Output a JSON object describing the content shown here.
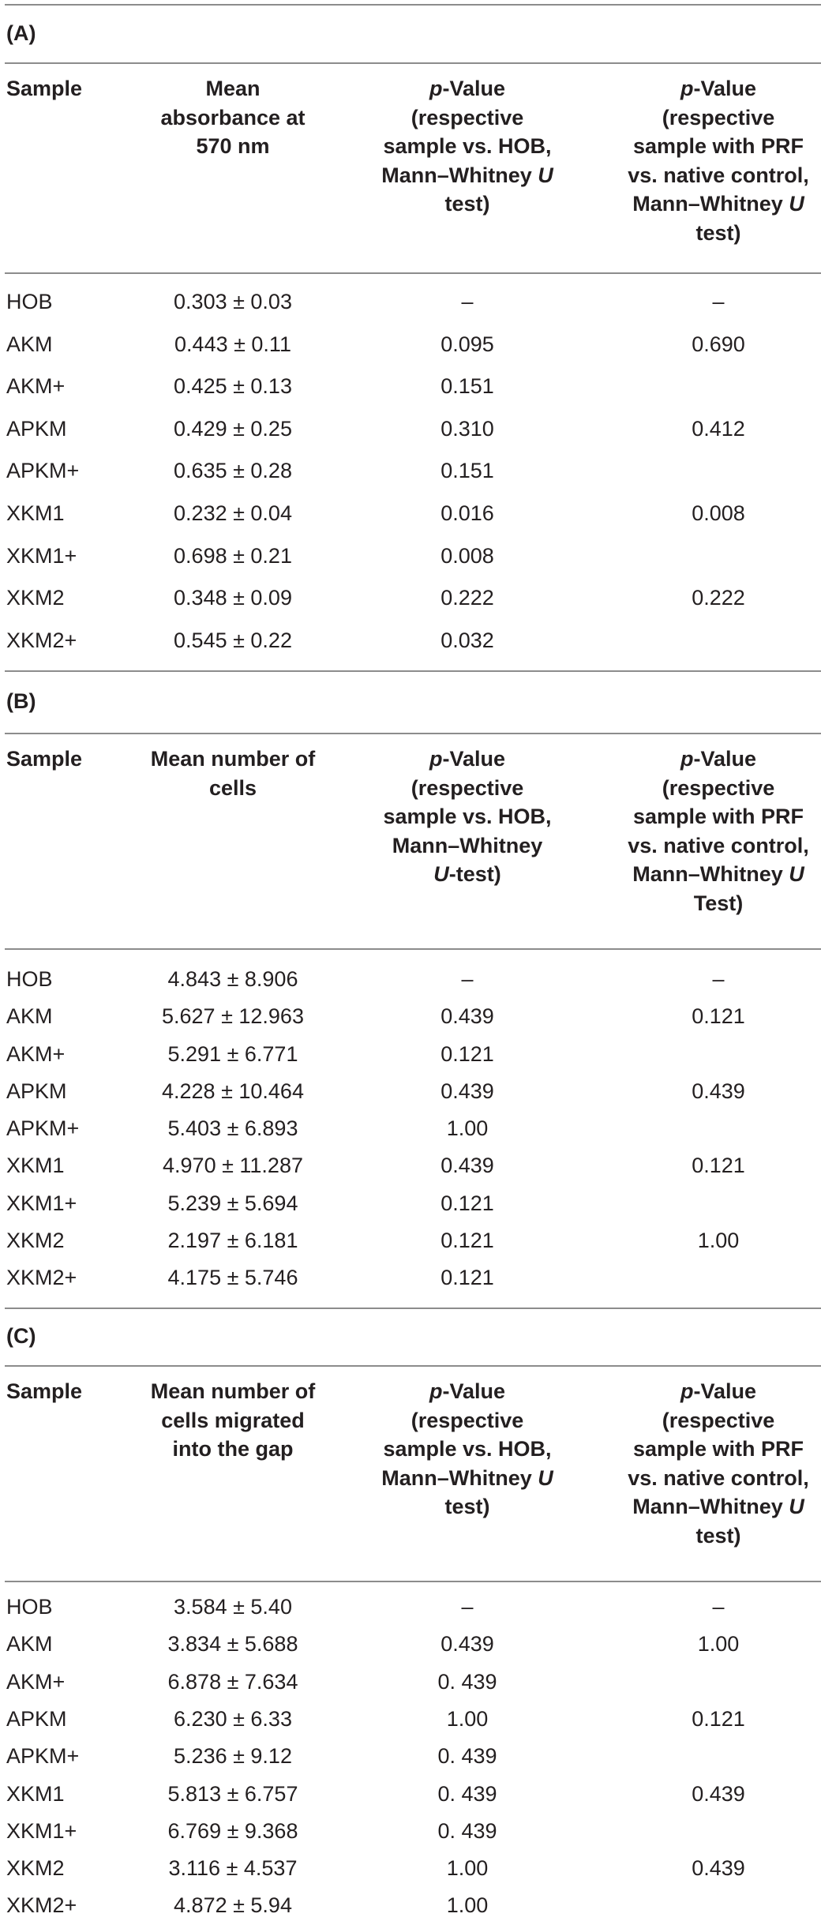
{
  "sections": [
    {
      "label": "(A)",
      "headers": [
        "Sample",
        "Mean\nabsorbance at\n570 nm",
        "p-Value\n(respective\nsample vs. HOB,\nMann–Whitney U\ntest)",
        "p-Value\n(respective\nsample with PRF\nvs. native control,\nMann–Whitney U\ntest)"
      ],
      "rows": [
        [
          "HOB",
          "0.303 ± 0.03",
          "–",
          "–"
        ],
        [
          "AKM",
          "0.443 ± 0.11",
          "0.095",
          "0.690"
        ],
        [
          "AKM+",
          "0.425 ± 0.13",
          "0.151",
          ""
        ],
        [
          "APKM",
          "0.429 ± 0.25",
          "0.310",
          "0.412"
        ],
        [
          "APKM+",
          "0.635 ± 0.28",
          "0.151",
          ""
        ],
        [
          "XKM1",
          "0.232 ± 0.04",
          "0.016",
          "0.008"
        ],
        [
          "XKM1+",
          "0.698 ± 0.21",
          "0.008",
          ""
        ],
        [
          "XKM2",
          "0.348 ± 0.09",
          "0.222",
          "0.222"
        ],
        [
          "XKM2+",
          "0.545 ± 0.22",
          "0.032",
          ""
        ]
      ]
    },
    {
      "label": "(B)",
      "headers": [
        "Sample",
        "Mean number of\ncells",
        "p-Value\n(respective\nsample vs. HOB,\nMann–Whitney\nU-test)",
        "p-Value\n(respective\nsample with PRF\nvs. native control,\nMann–Whitney U\nTest)"
      ],
      "rows": [
        [
          "HOB",
          "4.843 ± 8.906",
          "–",
          "–"
        ],
        [
          "AKM",
          "5.627 ± 12.963",
          "0.439",
          "0.121"
        ],
        [
          "AKM+",
          "5.291 ± 6.771",
          "0.121",
          ""
        ],
        [
          "APKM",
          "4.228 ± 10.464",
          "0.439",
          "0.439"
        ],
        [
          "APKM+",
          "5.403 ± 6.893",
          "1.00",
          ""
        ],
        [
          "XKM1",
          "4.970 ± 11.287",
          "0.439",
          "0.121"
        ],
        [
          "XKM1+",
          "5.239 ± 5.694",
          "0.121",
          ""
        ],
        [
          "XKM2",
          "2.197 ± 6.181",
          "0.121",
          "1.00"
        ],
        [
          "XKM2+",
          "4.175 ± 5.746",
          "0.121",
          ""
        ]
      ]
    },
    {
      "label": "(C)",
      "headers": [
        "Sample",
        "Mean number of\ncells migrated\ninto the gap",
        "p-Value\n(respective\nsample vs. HOB,\nMann–Whitney U\ntest)",
        "p-Value\n(respective\nsample with PRF\nvs. native control,\nMann–Whitney U\ntest)"
      ],
      "rows": [
        [
          "HOB",
          "3.584 ± 5.40",
          "–",
          "–"
        ],
        [
          "AKM",
          "3.834 ± 5.688",
          "0.439",
          "1.00"
        ],
        [
          "AKM+",
          "6.878 ± 7.634",
          "0. 439",
          ""
        ],
        [
          "APKM",
          "6.230 ± 6.33",
          "1.00",
          "0.121"
        ],
        [
          "APKM+",
          "5.236 ± 9.12",
          "0. 439",
          ""
        ],
        [
          "XKM1",
          "5.813 ± 6.757",
          "0. 439",
          "0.439"
        ],
        [
          "XKM1+",
          "6.769 ± 9.368",
          "0. 439",
          ""
        ],
        [
          "XKM2",
          "3.116 ± 4.537",
          "1.00",
          "0.439"
        ],
        [
          "XKM2+",
          "4.872 ± 5.94",
          "1.00",
          ""
        ]
      ]
    }
  ]
}
